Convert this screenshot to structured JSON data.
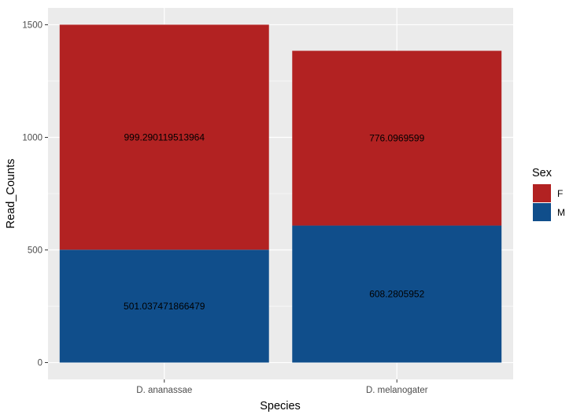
{
  "chart_data": {
    "type": "bar",
    "stacked": true,
    "categories": [
      "D. ananassae",
      "D. melanogater"
    ],
    "series": [
      {
        "name": "M",
        "color": "#104E8B",
        "values": [
          501.037471866479,
          608.2805952
        ],
        "labels": [
          "501.037471866479",
          "608.2805952"
        ]
      },
      {
        "name": "F",
        "color": "#B22222",
        "values": [
          999.290119513964,
          776.0969599
        ],
        "labels": [
          "999.290119513964",
          "776.0969599"
        ]
      }
    ],
    "xlabel": "Species",
    "ylabel": "Read_Counts",
    "ylim": [
      -75,
      1575
    ],
    "yticks": [
      0,
      500,
      1000,
      1500
    ],
    "ytick_labels": [
      "0",
      "500",
      "1000",
      "1500"
    ],
    "grid": true,
    "legend": {
      "title": "Sex",
      "placement": "right",
      "entries": [
        "F",
        "M"
      ]
    }
  }
}
